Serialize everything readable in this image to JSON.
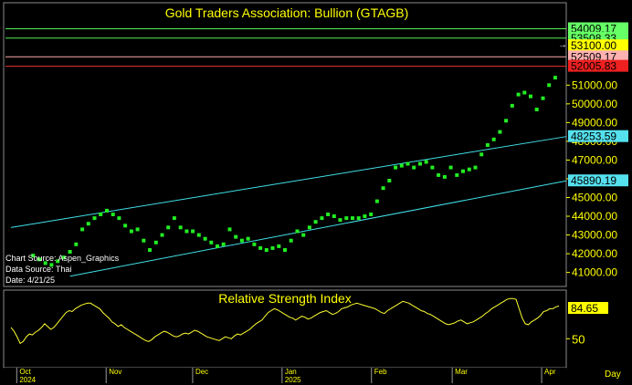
{
  "chart_data": [
    {
      "type": "scatter",
      "title": "Gold Traders Association: Bullion (GTAGB)",
      "xlabel": "",
      "ylabel": "",
      "ylim": [
        40300,
        55300
      ],
      "xlim": [
        -1,
        181
      ],
      "y_ticks": [
        "41000.00",
        "42000.00",
        "43000.00",
        "44000.00",
        "45000.00",
        "46000.00",
        "47000.00",
        "48000.00",
        "49000.00",
        "50000.00",
        "51000.00"
      ],
      "grid": false,
      "series": [
        {
          "color": "#22ee22",
          "x": [
            8,
            10,
            12,
            14,
            16,
            18,
            20,
            22,
            24,
            26,
            28,
            30,
            32,
            34,
            36,
            38,
            40,
            42,
            44,
            46,
            48,
            50,
            52,
            54,
            56,
            58,
            60,
            62,
            64,
            66,
            68,
            70,
            72,
            74,
            76,
            78,
            80,
            82,
            84,
            86,
            88,
            90,
            92,
            94,
            96,
            98,
            100,
            102,
            104,
            106,
            108,
            110,
            112,
            114,
            116,
            118,
            120,
            122,
            124,
            126,
            128,
            130,
            132,
            134,
            136,
            138,
            140,
            142,
            144,
            146,
            148,
            150,
            152,
            154,
            156,
            158,
            160,
            162,
            164,
            166,
            168,
            170,
            172,
            174,
            176,
            178
          ],
          "y": [
            41900,
            41700,
            41500,
            41400,
            41600,
            41800,
            42100,
            42500,
            43300,
            43600,
            43900,
            44100,
            44300,
            44100,
            43900,
            43500,
            43200,
            43300,
            42700,
            42200,
            42600,
            43000,
            43400,
            43900,
            43400,
            43200,
            43200,
            43000,
            42800,
            42600,
            42400,
            42500,
            43300,
            42900,
            42700,
            42800,
            42500,
            42300,
            42200,
            42300,
            42400,
            42200,
            42700,
            43200,
            43000,
            43400,
            43700,
            43900,
            44100,
            44000,
            43800,
            43900,
            43900,
            43900,
            44000,
            44100,
            44800,
            45500,
            45900,
            46600,
            46700,
            46800,
            46600,
            46800,
            46900,
            46600,
            46200,
            46100,
            46600,
            46200,
            46400,
            46500,
            46600,
            47300,
            47800,
            48100,
            48500,
            49100,
            49900,
            50500,
            50600,
            50400,
            49700,
            50300,
            51000,
            51400
          ]
        }
      ],
      "price_labels": [
        {
          "text": "54009.17",
          "bg": "#66ff66",
          "line": "#55ee55"
        },
        {
          "text": "53508.33",
          "bg": "#66ff66",
          "line": "#55ee55"
        },
        {
          "text": "53100.00",
          "bg": "#ffff00",
          "line": ""
        },
        {
          "text": "52509.17",
          "bg": "#ffb0b0",
          "line": "#ffaaaa"
        },
        {
          "text": "52005.83",
          "bg": "#ee2020",
          "line": "#ee3333"
        },
        {
          "text": "48253.59",
          "bg": "#55e0ee",
          "line": ""
        },
        {
          "text": "45890.19",
          "bg": "#55e0ee",
          "line": ""
        }
      ],
      "channel": {
        "color": "#40e0e8"
      },
      "notes": [
        "Chart Source: Aspen_Graphics",
        "Data Source: Thai",
        "Date: 4/21/25"
      ],
      "last_marker": "→"
    },
    {
      "type": "line",
      "title": "Relative Strength Index",
      "xlabel": "",
      "ylabel": "",
      "ylim": [
        20,
        100
      ],
      "y_ticks": [
        "50"
      ],
      "series": [
        {
          "color": "#ffff33",
          "values": [
            62,
            58,
            52,
            45,
            47,
            52,
            55,
            54,
            57,
            59,
            62,
            66,
            63,
            60,
            62,
            66,
            70,
            74,
            78,
            80,
            79,
            82,
            84,
            86,
            87,
            88,
            88,
            86,
            84,
            82,
            78,
            75,
            72,
            68,
            66,
            63,
            65,
            62,
            60,
            58,
            56,
            54,
            52,
            50,
            48,
            47,
            49,
            52,
            54,
            56,
            58,
            57,
            55,
            53,
            52,
            53,
            55,
            56,
            55,
            57,
            59,
            58,
            56,
            54,
            52,
            51,
            50,
            49,
            48,
            50,
            52,
            51,
            50,
            53,
            55,
            54,
            56,
            58,
            60,
            63,
            66,
            68,
            70,
            74,
            78,
            80,
            82,
            81,
            79,
            77,
            75,
            73,
            72,
            70,
            72,
            74,
            73,
            71,
            72,
            74,
            76,
            78,
            79,
            80,
            78,
            76,
            77,
            79,
            82,
            83,
            84,
            86,
            87,
            88,
            87,
            86,
            85,
            84,
            83,
            82,
            80,
            78,
            77,
            80,
            82,
            84,
            86,
            88,
            90,
            89,
            88,
            86,
            84,
            82,
            80,
            79,
            77,
            76,
            74,
            72,
            70,
            68,
            66,
            65,
            66,
            67,
            69,
            70,
            68,
            66,
            67,
            68,
            70,
            72,
            74,
            77,
            79,
            82,
            84,
            86,
            88,
            90,
            92,
            93,
            93,
            92,
            82,
            72,
            66,
            65,
            68,
            70,
            72,
            75,
            79,
            80,
            82,
            82,
            84,
            85
          ]
        }
      ],
      "last_value_label": "84.65",
      "last_value_bg": "#ffff00"
    }
  ],
  "time_axis": {
    "months": [
      {
        "label": "Oct",
        "year": "2024",
        "index": 2
      },
      {
        "label": "Nov",
        "year": "",
        "index": 33
      },
      {
        "label": "Dec",
        "year": "",
        "index": 63
      },
      {
        "label": "Jan",
        "year": "2025",
        "index": 94
      },
      {
        "label": "Feb",
        "year": "",
        "index": 125
      },
      {
        "label": "Mar",
        "year": "",
        "index": 153
      },
      {
        "label": "Apr",
        "year": "",
        "index": 184
      }
    ],
    "period_label": "Day"
  }
}
